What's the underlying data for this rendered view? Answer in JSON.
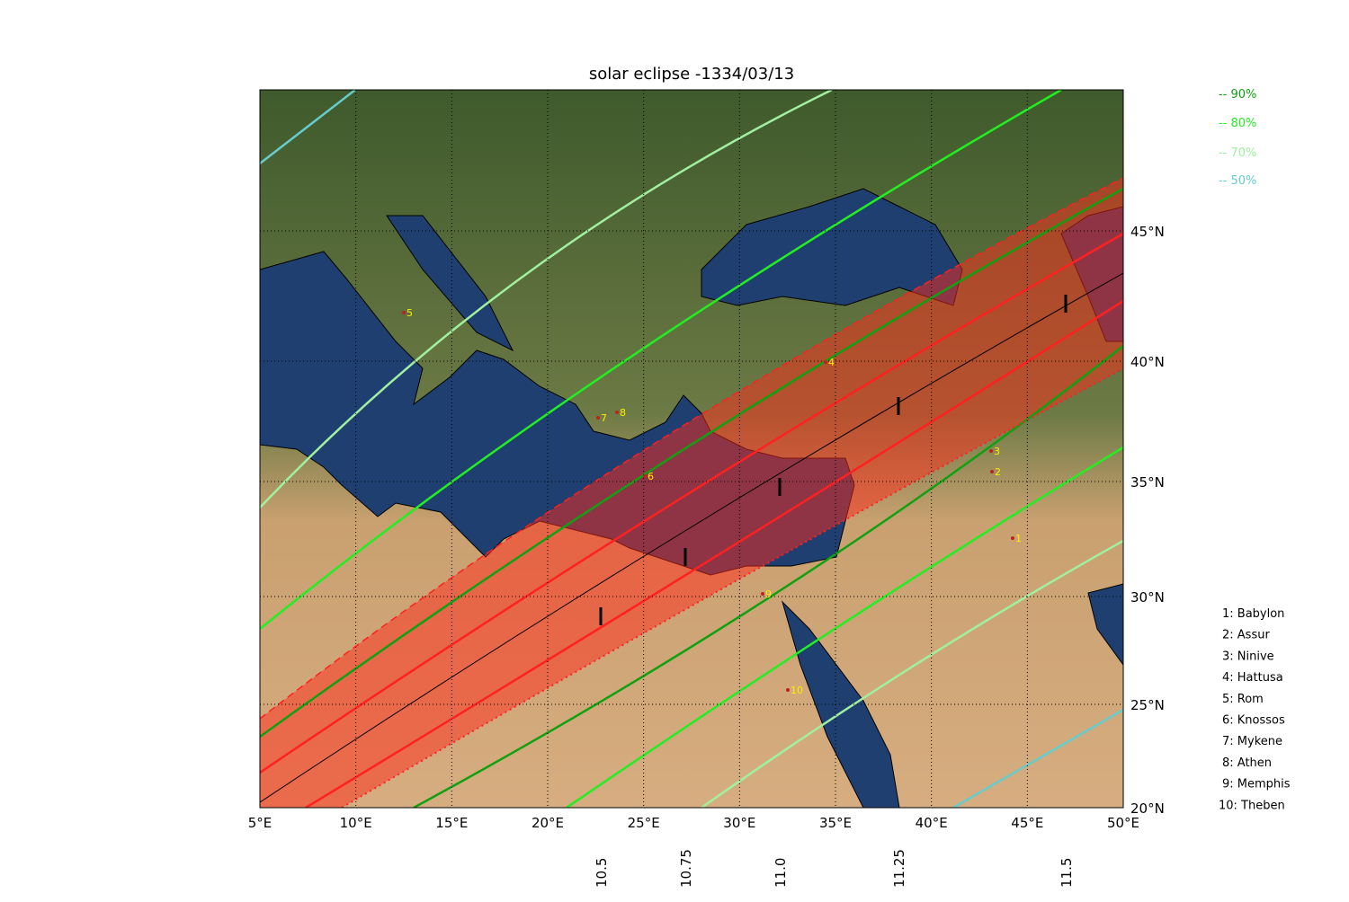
{
  "title": "solar eclipse -1334/03/13",
  "lon_ticks": [
    "5°E",
    "10°E",
    "15°E",
    "20°E",
    "25°E",
    "30°E",
    "35°E",
    "40°E",
    "45°E",
    "50°E"
  ],
  "lat_ticks": [
    "20°N",
    "25°N",
    "30°N",
    "35°N",
    "40°N",
    "45°N"
  ],
  "time_ticks": [
    "10.5",
    "10.75",
    "11.0",
    "11.25",
    "11.5"
  ],
  "legend": [
    {
      "label": "-- 90%",
      "color": "#10a010"
    },
    {
      "label": "-- 80%",
      "color": "#22ee22"
    },
    {
      "label": "-- 70%",
      "color": "#a0f0a0"
    },
    {
      "label": "-- 50%",
      "color": "#66cccc"
    }
  ],
  "cities": [
    {
      "marker": "1",
      "key": "1: Babylon"
    },
    {
      "marker": "2",
      "key": "2: Assur"
    },
    {
      "marker": "3",
      "key": "3: Ninive"
    },
    {
      "marker": "4",
      "key": "4: Hattusa"
    },
    {
      "marker": "5",
      "key": "5: Rom"
    },
    {
      "marker": "6",
      "key": "6: Knossos"
    },
    {
      "marker": "7",
      "key": "7: Mykene"
    },
    {
      "marker": "8",
      "key": "8: Athen"
    },
    {
      "marker": "9",
      "key": "9: Memphis"
    },
    {
      "marker": "10",
      "key": "10: Theben"
    }
  ]
}
